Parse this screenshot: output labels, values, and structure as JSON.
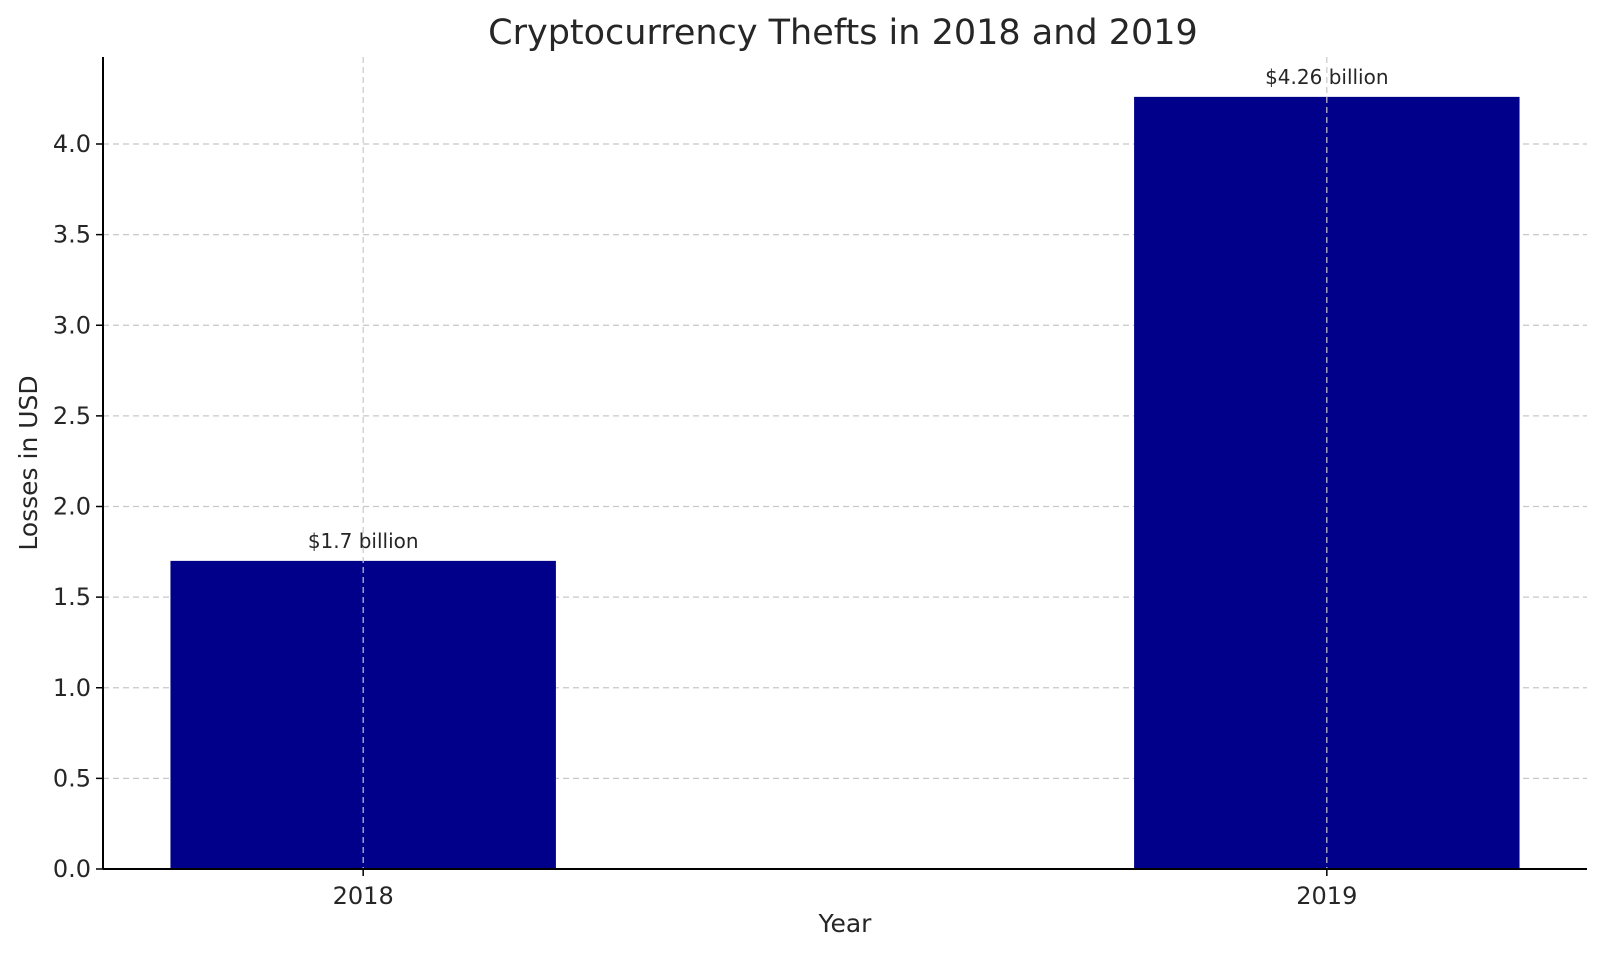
{
  "chart_data": {
    "type": "bar",
    "title": "Cryptocurrency Thefts in 2018 and 2019",
    "xlabel": "Year",
    "ylabel": "Losses in USD",
    "categories": [
      "2018",
      "2019"
    ],
    "values": [
      1.7,
      4.26
    ],
    "data_labels": [
      "$1.7 billion",
      "$4.26 billion"
    ],
    "ylim": [
      0,
      4.48
    ],
    "yticks": [
      "0.0",
      "0.5",
      "1.0",
      "1.5",
      "2.0",
      "2.5",
      "3.0",
      "3.5",
      "4.0"
    ],
    "grid": true,
    "bar_color": "#00008b"
  }
}
